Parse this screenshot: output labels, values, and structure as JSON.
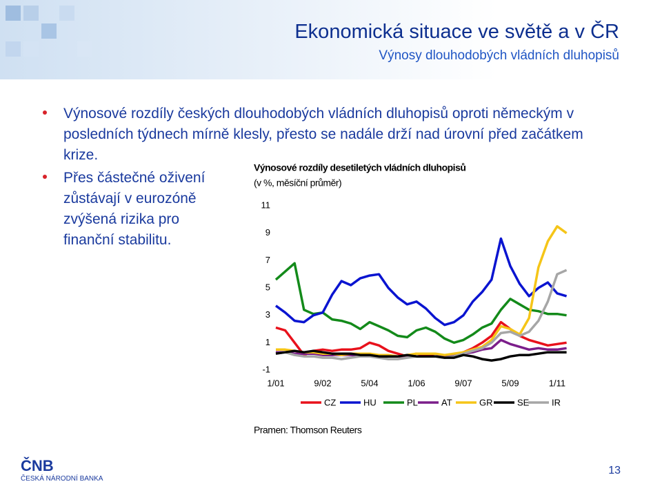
{
  "header": {
    "title": "Ekonomická situace ve světě a v ČR",
    "subtitle": "Výnosy dlouhodobých vládních dluhopisů"
  },
  "bullets": [
    "Výnosové rozdíly českých dlouhodobých vládních dluhopisů oproti německým v posledních týdnech mírně klesly, přesto se nadále drží nad úrovní před začátkem krize.",
    "Přes částečné oživení zůstávají v eurozóně zvýšená rizika pro finanční stabilitu."
  ],
  "chart_data": {
    "type": "line",
    "title": "Výnosové rozdíly desetiletých vládních dluhopisů",
    "subtitle": "(v %, měsíční průměr)",
    "source": "Pramen: Thomson Reuters",
    "categories": [
      "1/01",
      null,
      null,
      null,
      null,
      "9/02",
      null,
      null,
      null,
      null,
      "5/04",
      null,
      null,
      null,
      null,
      "1/06",
      null,
      null,
      null,
      null,
      "9/07",
      null,
      null,
      null,
      null,
      "5/09",
      null,
      null,
      null,
      null,
      "1/11",
      null
    ],
    "ylim": [
      -1,
      11
    ],
    "yticks": [
      -1,
      1,
      3,
      5,
      7,
      9,
      11
    ],
    "series": [
      {
        "name": "CZ",
        "color": "#e8111b",
        "values": [
          2.1,
          1.9,
          1.0,
          0.1,
          0.4,
          0.5,
          0.4,
          0.5,
          0.5,
          0.6,
          1.0,
          0.8,
          0.4,
          0.2,
          0.0,
          0.2,
          0.1,
          0.0,
          0.0,
          0.1,
          0.3,
          0.6,
          1.0,
          1.5,
          2.5,
          2.0,
          1.5,
          1.2,
          1.0,
          0.8,
          0.9,
          1.0
        ]
      },
      {
        "name": "HU",
        "color": "#0a14d0",
        "values": [
          3.7,
          3.2,
          2.6,
          2.5,
          3.0,
          3.2,
          4.5,
          5.5,
          5.2,
          5.7,
          5.9,
          6.0,
          5.0,
          4.3,
          3.8,
          4.0,
          3.5,
          2.8,
          2.3,
          2.5,
          3.0,
          4.0,
          4.7,
          5.6,
          8.6,
          6.6,
          5.3,
          4.4,
          5.0,
          5.4,
          4.6,
          4.4
        ]
      },
      {
        "name": "PL",
        "color": "#138a1a",
        "values": [
          5.6,
          6.2,
          6.8,
          3.4,
          3.1,
          3.2,
          2.7,
          2.6,
          2.4,
          2.0,
          2.5,
          2.2,
          1.9,
          1.5,
          1.4,
          1.9,
          2.1,
          1.8,
          1.3,
          1.0,
          1.2,
          1.6,
          2.1,
          2.4,
          3.4,
          4.2,
          3.8,
          3.4,
          3.3,
          3.1,
          3.1,
          3.0
        ]
      },
      {
        "name": "AT",
        "color": "#7b1e8a",
        "values": [
          0.3,
          0.3,
          0.2,
          0.2,
          0.2,
          0.1,
          0.1,
          0.1,
          0.1,
          0.1,
          0.1,
          0.0,
          0.0,
          0.0,
          0.0,
          0.0,
          0.0,
          0.0,
          0.1,
          0.1,
          0.2,
          0.3,
          0.5,
          0.6,
          1.2,
          0.9,
          0.7,
          0.5,
          0.6,
          0.5,
          0.5,
          0.6
        ]
      },
      {
        "name": "GR",
        "color": "#f5c518",
        "values": [
          0.5,
          0.5,
          0.4,
          0.3,
          0.3,
          0.2,
          0.2,
          0.1,
          0.2,
          0.2,
          0.2,
          0.1,
          0.1,
          0.0,
          0.1,
          0.2,
          0.2,
          0.2,
          0.1,
          0.2,
          0.3,
          0.5,
          0.7,
          1.2,
          2.2,
          2.0,
          1.6,
          2.8,
          6.5,
          8.4,
          9.5,
          9.0
        ]
      },
      {
        "name": "SE",
        "color": "#000000",
        "values": [
          0.2,
          0.3,
          0.4,
          0.3,
          0.4,
          0.3,
          0.2,
          0.2,
          0.2,
          0.1,
          0.1,
          0.0,
          0.0,
          0.0,
          0.1,
          0.0,
          0.0,
          0.0,
          -0.1,
          -0.1,
          0.1,
          0.0,
          -0.2,
          -0.3,
          -0.2,
          0.0,
          0.1,
          0.1,
          0.2,
          0.3,
          0.3,
          0.3
        ]
      },
      {
        "name": "IR",
        "color": "#a6a6a6",
        "values": [
          0.2,
          0.3,
          0.1,
          0.0,
          0.0,
          -0.1,
          -0.1,
          -0.2,
          -0.1,
          0.0,
          0.0,
          -0.1,
          -0.2,
          -0.2,
          -0.1,
          0.0,
          0.0,
          0.0,
          -0.1,
          0.0,
          0.2,
          0.4,
          0.6,
          1.0,
          1.7,
          1.8,
          1.5,
          1.8,
          2.6,
          4.0,
          6.0,
          6.3
        ]
      }
    ]
  },
  "footer": {
    "logo": "ČNB",
    "logo_text": "ČESKÁ NÁRODNÍ BANKA",
    "page": "13"
  }
}
